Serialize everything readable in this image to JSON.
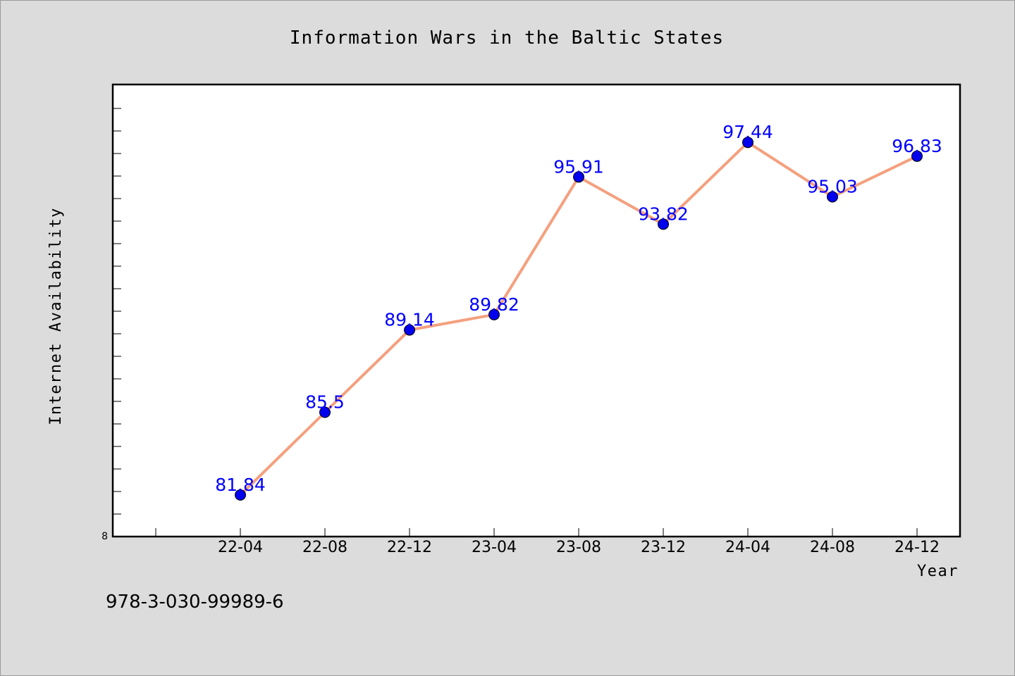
{
  "chart_data": {
    "type": "line",
    "title": "Information Wars in the Baltic States",
    "xlabel": "Year",
    "ylabel": "Internet Availability",
    "categories": [
      "22-04",
      "22-08",
      "22-12",
      "23-04",
      "23-08",
      "23-12",
      "24-04",
      "24-08",
      "24-12"
    ],
    "series": [
      {
        "values": [
          81.84,
          85.5,
          89.14,
          89.82,
          95.91,
          93.82,
          97.44,
          95.03,
          96.83
        ],
        "labels": [
          "81.84",
          "85.5",
          "89.14",
          "89.82",
          "95.91",
          "93.82",
          "97.44",
          "95.03",
          "96.83"
        ]
      }
    ],
    "y_tick_labels": [
      "8"
    ],
    "ylim": [
      80,
      100
    ],
    "grid": false,
    "colors": {
      "line": "#f4a07e",
      "marker": "#0000ee",
      "data_label": "#0000ff",
      "background": "#dcdcdc",
      "plot_background": "#ffffff"
    }
  },
  "footer": {
    "isbn": "978-3-030-99989-6"
  }
}
